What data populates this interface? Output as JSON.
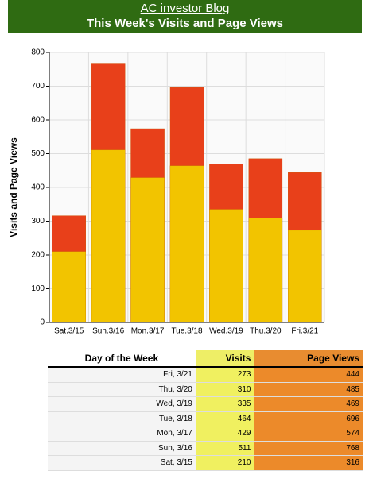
{
  "header": {
    "blog": "AC investor Blog",
    "title": "This Week's Visits and Page Views"
  },
  "chart_data": {
    "type": "bar",
    "ylabel": "Visits and Page Views",
    "categories": [
      "Sat.3/15",
      "Sun.3/16",
      "Mon.3/17",
      "Tue.3/18",
      "Wed.3/19",
      "Thu.3/20",
      "Fri.3/21"
    ],
    "series": [
      {
        "name": "Page Views",
        "color": "#e8401a",
        "values": [
          316,
          768,
          574,
          696,
          469,
          485,
          444
        ]
      },
      {
        "name": "Visits",
        "color": "#f2c400",
        "values": [
          210,
          511,
          429,
          464,
          335,
          310,
          273
        ]
      }
    ],
    "ylim": [
      0,
      800
    ],
    "yticks": [
      0,
      100,
      200,
      300,
      400,
      500,
      600,
      700,
      800
    ],
    "grid": true
  },
  "table": {
    "columns": [
      "Day of the Week",
      "Visits",
      "Page Views"
    ],
    "rows": [
      [
        "Fri, 3/21",
        "273",
        "444"
      ],
      [
        "Thu, 3/20",
        "310",
        "485"
      ],
      [
        "Wed, 3/19",
        "335",
        "469"
      ],
      [
        "Tue, 3/18",
        "464",
        "696"
      ],
      [
        "Mon, 3/17",
        "429",
        "574"
      ],
      [
        "Sun, 3/16",
        "511",
        "768"
      ],
      [
        "Sat, 3/15",
        "210",
        "316"
      ]
    ]
  }
}
